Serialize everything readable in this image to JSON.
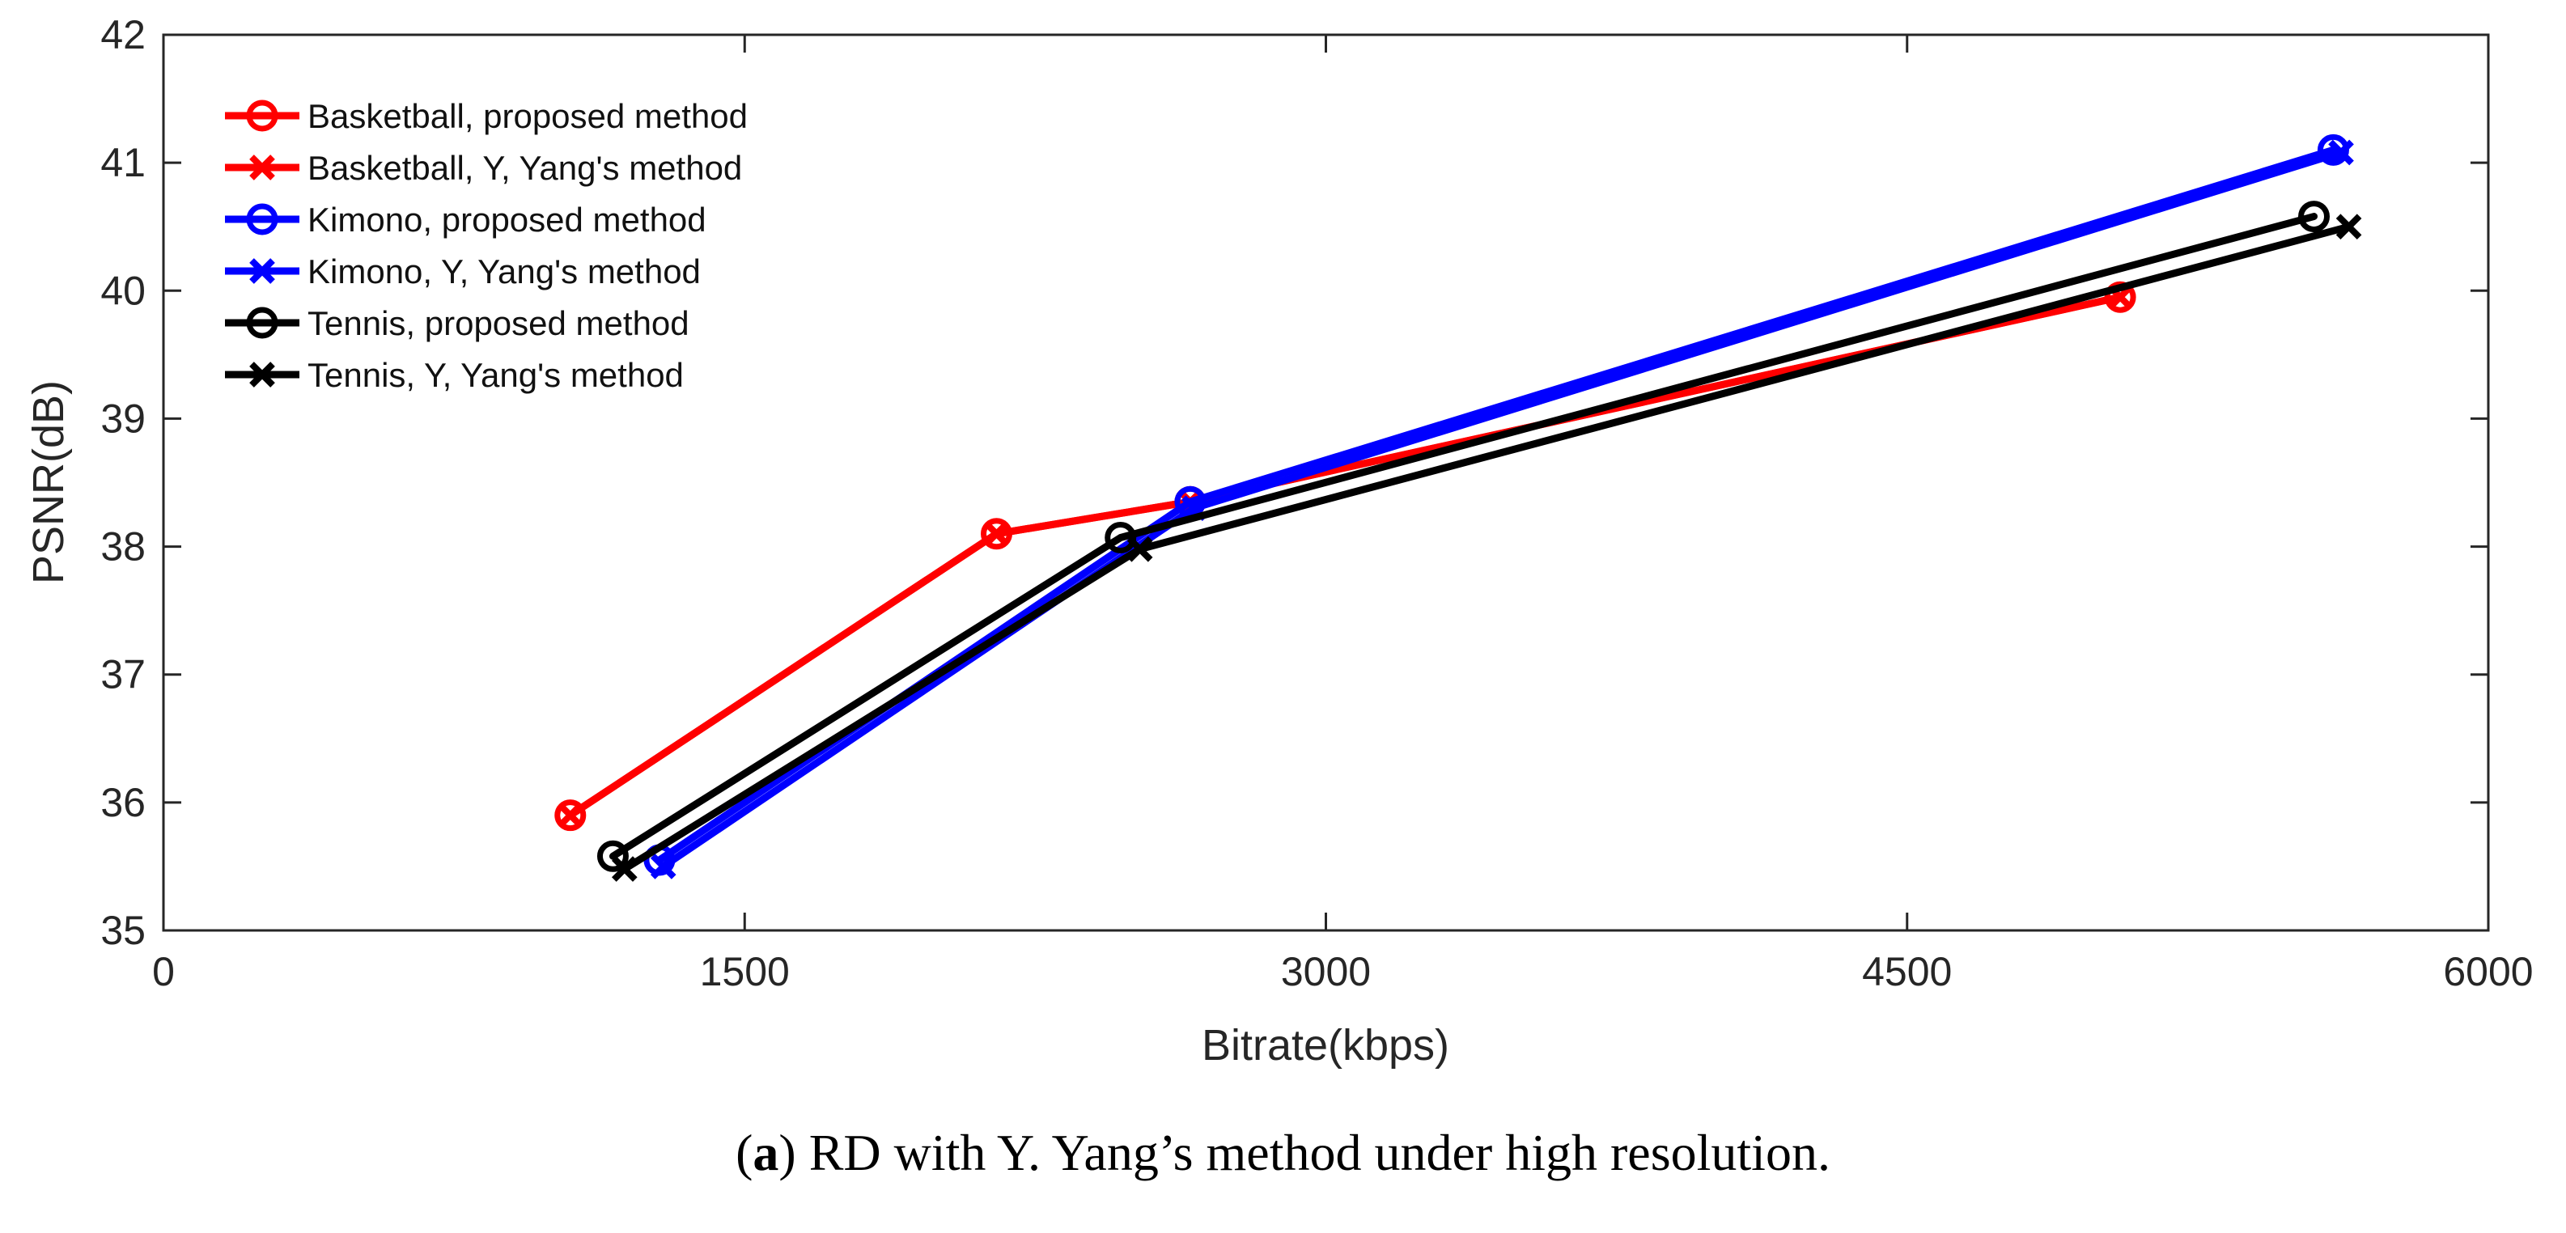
{
  "chart_data": {
    "type": "line",
    "title": "",
    "xlabel": "Bitrate(kbps)",
    "ylabel": "PSNR(dB)",
    "xlim": [
      0,
      6000
    ],
    "ylim": [
      35,
      42
    ],
    "xticks": [
      0,
      1500,
      3000,
      4500,
      6000
    ],
    "yticks": [
      35,
      36,
      37,
      38,
      39,
      40,
      41,
      42
    ],
    "grid": false,
    "legend_position": "top-left",
    "series": [
      {
        "name": "Basketball, proposed method",
        "color": "#ff0000",
        "marker": "circle",
        "x": [
          1050,
          2150,
          2650,
          5050
        ],
        "y": [
          35.9,
          38.1,
          38.35,
          39.95
        ]
      },
      {
        "name": "Basketball, Y, Yang's method",
        "color": "#ff0000",
        "marker": "x",
        "x": [
          1050,
          2150,
          2650,
          5050
        ],
        "y": [
          35.9,
          38.1,
          38.35,
          39.95
        ]
      },
      {
        "name": "Kimono, proposed method",
        "color": "#0000ff",
        "marker": "circle",
        "x": [
          1280,
          2650,
          5600
        ],
        "y": [
          35.55,
          38.35,
          41.1
        ]
      },
      {
        "name": "Kimono, Y, Yang's method",
        "color": "#0000ff",
        "marker": "x",
        "x": [
          1290,
          2660,
          5620
        ],
        "y": [
          35.5,
          38.3,
          41.08
        ]
      },
      {
        "name": "Tennis, proposed method",
        "color": "#000000",
        "marker": "circle",
        "x": [
          1160,
          2470,
          5550
        ],
        "y": [
          35.58,
          38.07,
          40.58
        ]
      },
      {
        "name": "Tennis, Y, Yang's method",
        "color": "#000000",
        "marker": "x",
        "x": [
          1190,
          2520,
          5640
        ],
        "y": [
          35.48,
          37.98,
          40.5
        ]
      }
    ]
  },
  "caption": {
    "label": "a",
    "open": "(",
    "close": ")",
    "text": " RD with Y. Yang’s method under high resolution."
  }
}
